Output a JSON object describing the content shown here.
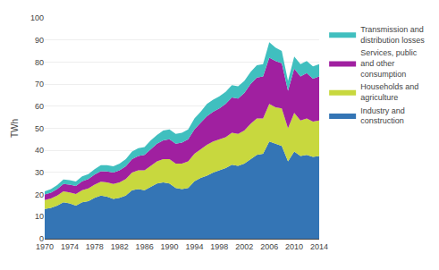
{
  "chart_data": {
    "type": "area",
    "stacked": true,
    "y_label": "TWh",
    "x": [
      1970,
      1971,
      1972,
      1973,
      1974,
      1975,
      1976,
      1977,
      1978,
      1979,
      1980,
      1981,
      1982,
      1983,
      1984,
      1985,
      1986,
      1987,
      1988,
      1989,
      1990,
      1991,
      1992,
      1993,
      1994,
      1995,
      1996,
      1997,
      1998,
      1999,
      2000,
      2001,
      2002,
      2003,
      2004,
      2005,
      2006,
      2007,
      2008,
      2009,
      2010,
      2011,
      2012,
      2013,
      2014
    ],
    "series": [
      {
        "name": "Industry and\nconstruction",
        "color": "#3475b5",
        "values": [
          13.5,
          14.0,
          15.0,
          16.5,
          16.0,
          15.0,
          16.5,
          17.0,
          18.5,
          19.5,
          19.0,
          18.0,
          18.5,
          19.5,
          22.0,
          22.5,
          22.0,
          23.5,
          25.0,
          25.5,
          25.0,
          23.0,
          22.5,
          23.0,
          26.0,
          27.5,
          28.5,
          30.0,
          31.0,
          32.0,
          33.5,
          33.0,
          34.0,
          36.0,
          38.0,
          38.5,
          44.0,
          43.0,
          42.0,
          35.0,
          39.5,
          37.5,
          38.0,
          37.0,
          37.5
        ]
      },
      {
        "name": "Households and\nagriculture",
        "color": "#c8d83e",
        "values": [
          4.0,
          4.2,
          4.5,
          5.0,
          5.0,
          5.2,
          5.5,
          5.8,
          6.0,
          6.3,
          6.5,
          6.8,
          7.0,
          7.5,
          8.0,
          8.5,
          9.0,
          9.5,
          10.0,
          10.5,
          11.0,
          11.0,
          11.5,
          12.0,
          12.5,
          13.0,
          14.0,
          14.0,
          14.0,
          14.0,
          14.5,
          14.5,
          15.0,
          16.0,
          16.5,
          16.0,
          17.0,
          16.5,
          17.0,
          15.0,
          17.5,
          16.0,
          16.5,
          16.0,
          16.0
        ]
      },
      {
        "name": "Services, public\nand other\nconsumption",
        "color": "#a020a0",
        "values": [
          2.5,
          2.7,
          3.0,
          3.3,
          3.5,
          3.7,
          4.0,
          4.2,
          4.5,
          4.8,
          5.0,
          5.2,
          5.5,
          5.8,
          6.0,
          6.5,
          7.0,
          7.5,
          8.0,
          8.5,
          9.0,
          9.0,
          9.5,
          10.0,
          11.0,
          12.0,
          13.0,
          13.5,
          14.0,
          15.0,
          16.0,
          16.0,
          17.0,
          18.0,
          18.5,
          19.0,
          21.0,
          21.0,
          20.5,
          17.0,
          20.0,
          20.0,
          20.5,
          19.5,
          20.0
        ]
      },
      {
        "name": "Transmission and\ndistribution losses",
        "color": "#40bfbf",
        "values": [
          1.5,
          1.6,
          1.8,
          2.0,
          2.0,
          2.0,
          2.2,
          2.3,
          2.5,
          2.7,
          2.8,
          2.8,
          3.0,
          3.2,
          3.5,
          3.5,
          3.5,
          4.0,
          4.0,
          4.5,
          4.5,
          4.5,
          4.5,
          4.5,
          5.0,
          5.0,
          5.5,
          5.5,
          5.5,
          5.5,
          5.5,
          5.5,
          5.5,
          5.5,
          5.5,
          5.5,
          7.0,
          6.0,
          5.5,
          4.5,
          5.5,
          5.5,
          5.5,
          5.5,
          5.5
        ]
      }
    ],
    "xlim": [
      1970,
      2014
    ],
    "xticks": [
      1970,
      1974,
      1978,
      1982,
      1986,
      1990,
      1994,
      1998,
      2002,
      2006,
      2010,
      2014
    ],
    "ylim": [
      0,
      100
    ],
    "yticks": [
      0,
      10,
      20,
      30,
      40,
      50,
      60,
      70,
      80,
      90,
      100
    ],
    "grid": true
  }
}
